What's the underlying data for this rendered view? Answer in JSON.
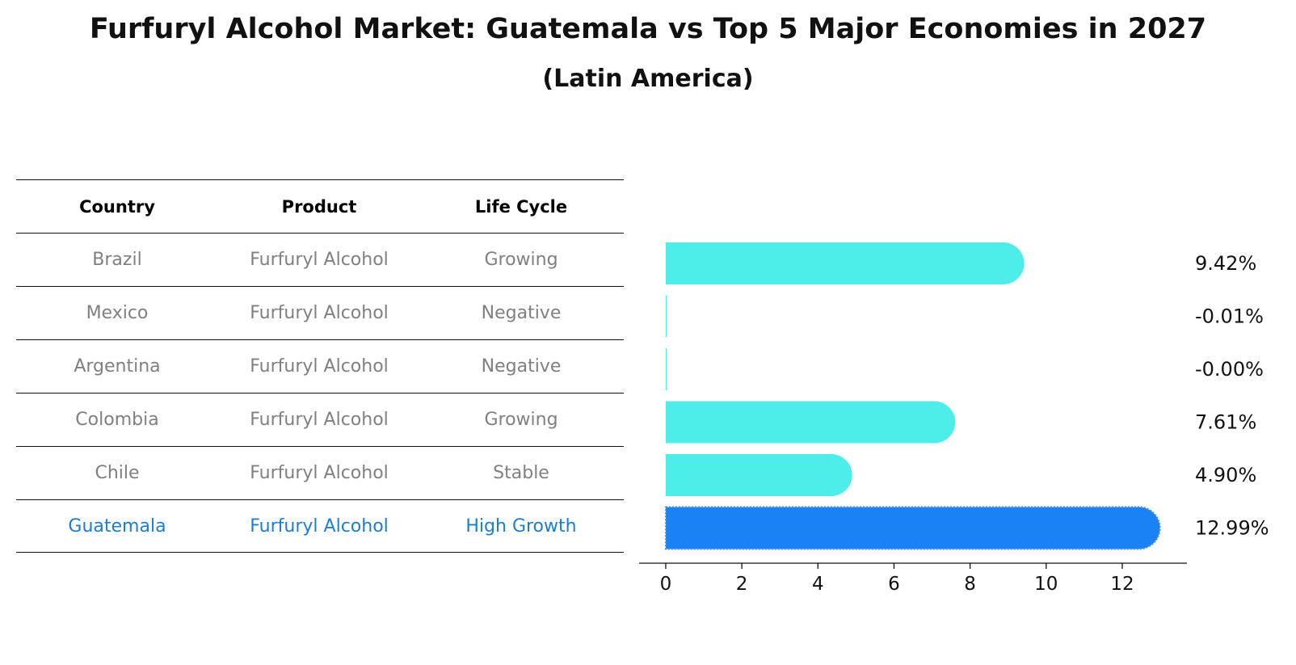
{
  "title": "Furfuryl Alcohol Market: Guatemala vs Top 5 Major Economies in 2027",
  "subtitle": "(Latin America)",
  "table": {
    "headers": [
      "Country",
      "Product",
      "Life Cycle"
    ],
    "rows": [
      {
        "country": "Brazil",
        "product": "Furfuryl Alcohol",
        "life_cycle": "Growing"
      },
      {
        "country": "Mexico",
        "product": "Furfuryl Alcohol",
        "life_cycle": "Negative"
      },
      {
        "country": "Argentina",
        "product": "Furfuryl Alcohol",
        "life_cycle": "Negative"
      },
      {
        "country": "Colombia",
        "product": "Furfuryl Alcohol",
        "life_cycle": "Growing"
      },
      {
        "country": "Chile",
        "product": "Furfuryl Alcohol",
        "life_cycle": "Stable"
      },
      {
        "country": "Guatemala",
        "product": "Furfuryl Alcohol",
        "life_cycle": "High Growth"
      }
    ]
  },
  "colors": {
    "bar": "#4deeea",
    "highlight": "#1a82f5",
    "highlight_text": "#1a7fd4"
  },
  "chart_data": {
    "type": "bar",
    "orientation": "horizontal",
    "categories": [
      "Brazil",
      "Mexico",
      "Argentina",
      "Colombia",
      "Chile",
      "Guatemala"
    ],
    "values": [
      9.42,
      -0.01,
      -0.0,
      7.61,
      4.9,
      12.99
    ],
    "value_labels": [
      "9.42%",
      "-0.01%",
      "-0.00%",
      "7.61%",
      "4.90%",
      "12.99%"
    ],
    "highlight": "Guatemala",
    "xlim": [
      -0.7,
      13.7
    ],
    "xticks": [
      0,
      2,
      4,
      6,
      8,
      10,
      12
    ],
    "xticklabels": [
      "0",
      "2",
      "4",
      "6",
      "8",
      "10",
      "12"
    ]
  }
}
